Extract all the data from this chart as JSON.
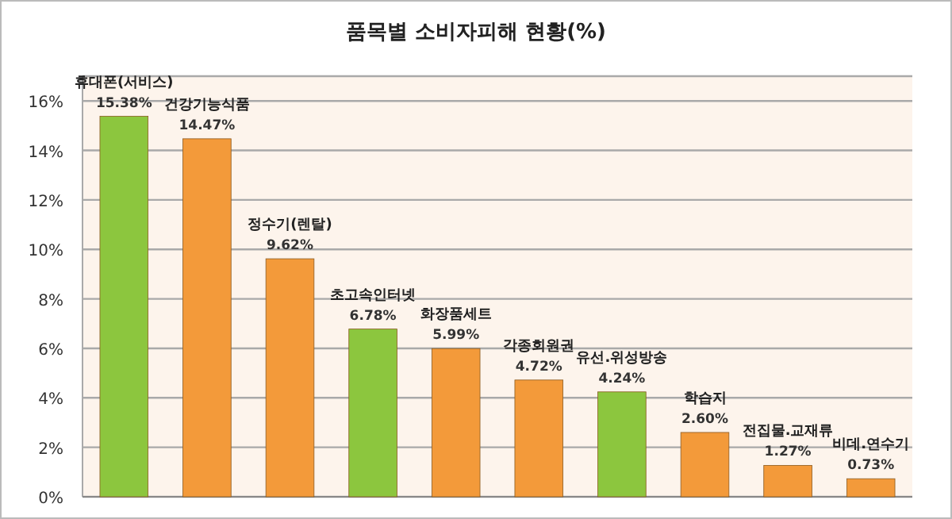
{
  "chart_data": {
    "type": "bar",
    "title": "품목별 소비자피해 현황(%)",
    "categories": [
      "휴대폰(서비스)",
      "건강기능식품",
      "정수기(렌탈)",
      "초고속인터넷",
      "화장품세트",
      "각종회원권",
      "유선.위성방송",
      "학습지",
      "전집물.교재류",
      "비데.연수기"
    ],
    "values": [
      15.38,
      14.47,
      9.62,
      6.78,
      5.99,
      4.72,
      4.24,
      2.6,
      1.27,
      0.73
    ],
    "value_labels": [
      "15.38%",
      "14.47%",
      "9.62%",
      "6.78%",
      "5.99%",
      "4.72%",
      "4.24%",
      "2.60%",
      "1.27%",
      "0.73%"
    ],
    "colors": [
      "#8cc63e",
      "#f39a3a",
      "#f39a3a",
      "#8cc63e",
      "#f39a3a",
      "#f39a3a",
      "#8cc63e",
      "#f39a3a",
      "#f39a3a",
      "#f39a3a"
    ],
    "ylim": [
      0,
      17
    ],
    "yticks": [
      {
        "value": 0,
        "label": "0%"
      },
      {
        "value": 2,
        "label": "2%"
      },
      {
        "value": 4,
        "label": "4%"
      },
      {
        "value": 6,
        "label": "6%"
      },
      {
        "value": 8,
        "label": "8%"
      },
      {
        "value": 10,
        "label": "10%"
      },
      {
        "value": 12,
        "label": "12%"
      },
      {
        "value": 14,
        "label": "14%"
      },
      {
        "value": 16,
        "label": "16%"
      }
    ],
    "grid": "y"
  }
}
